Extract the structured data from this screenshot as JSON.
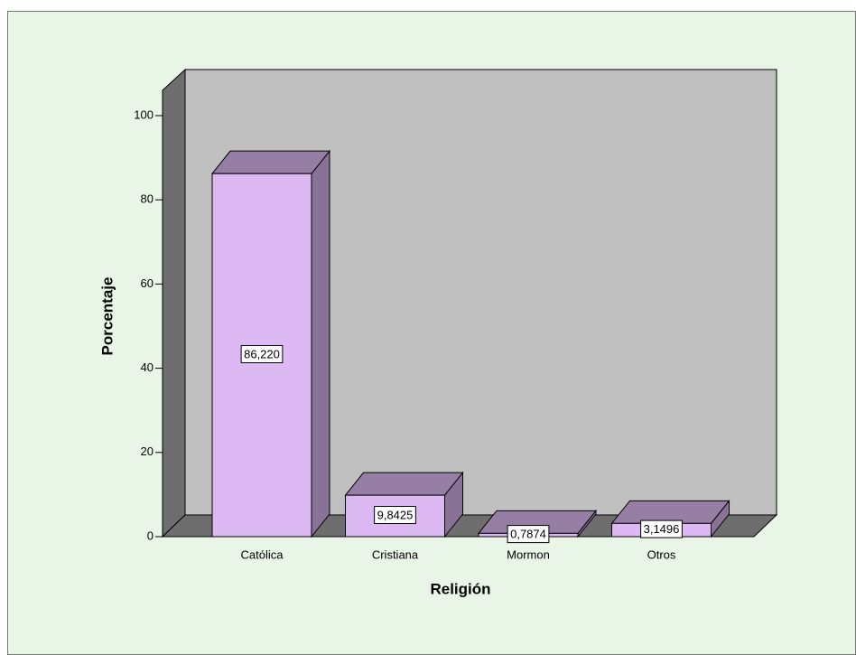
{
  "chart_data": {
    "type": "bar3d",
    "x_label": "Religión",
    "y_label": "Porcentaje",
    "categories": [
      "Católica",
      "Cristiana",
      "Mormon",
      "Otros"
    ],
    "values": [
      86.22,
      9.8425,
      0.7874,
      3.1496
    ],
    "value_labels": [
      "86,220",
      "9,8425",
      "0,7874",
      "3,1496"
    ],
    "color": "#dcb9f2",
    "ylim": [
      0,
      106
    ],
    "yticks": [
      0,
      20,
      40,
      60,
      80,
      100
    ]
  }
}
